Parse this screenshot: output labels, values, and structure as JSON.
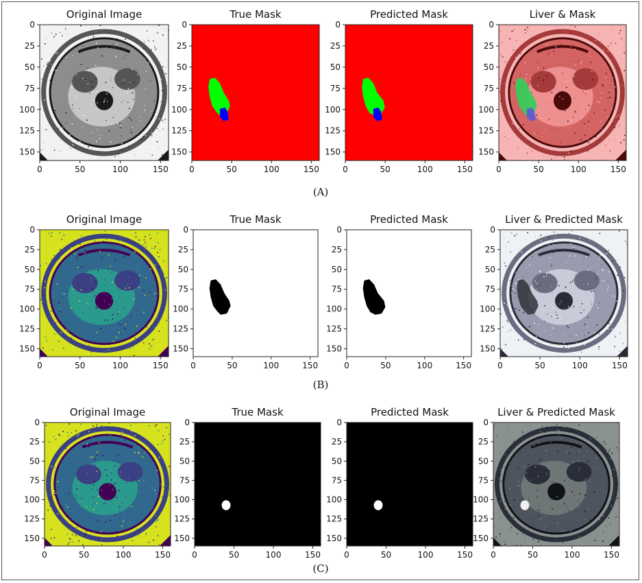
{
  "rows": [
    {
      "id": "A",
      "caption": "(A)",
      "panels": [
        {
          "title": "Original Image",
          "kind": "ct",
          "colormap": "gray"
        },
        {
          "title": "True Mask",
          "kind": "mask",
          "style": "rgb",
          "variant": "true"
        },
        {
          "title": "Predicted Mask",
          "kind": "mask",
          "style": "rgb",
          "variant": "pred"
        },
        {
          "title": "Liver & Mask",
          "kind": "overlay",
          "style": "red"
        }
      ]
    },
    {
      "id": "B",
      "caption": "(B)",
      "panels": [
        {
          "title": "Original Image",
          "kind": "ct",
          "colormap": "viridis"
        },
        {
          "title": "True Mask",
          "kind": "mask",
          "style": "white",
          "variant": "true"
        },
        {
          "title": "Predicted Mask",
          "kind": "mask",
          "style": "white",
          "variant": "pred"
        },
        {
          "title": "Liver & Predicted Mask",
          "kind": "overlay",
          "style": "light"
        }
      ]
    },
    {
      "id": "C",
      "caption": "(C)",
      "panels": [
        {
          "title": "Original Image",
          "kind": "ct",
          "colormap": "viridis"
        },
        {
          "title": "True Mask",
          "kind": "mask",
          "style": "black",
          "variant": "true"
        },
        {
          "title": "Predicted Mask",
          "kind": "mask",
          "style": "black",
          "variant": "pred"
        },
        {
          "title": "Liver & Predicted Mask",
          "kind": "overlay",
          "style": "dark"
        }
      ]
    }
  ],
  "axis": {
    "x_ticks": [
      0,
      50,
      100,
      150
    ],
    "y_ticks": [
      0,
      25,
      50,
      75,
      100,
      125,
      150
    ],
    "range": [
      0,
      160
    ]
  },
  "colors": {
    "mask_background_red": "#ff0000",
    "liver_green": "#00ff00",
    "tumor_blue": "#0000ff",
    "viridis_yellow": "#d6e21e",
    "viridis_teal": "#2a9a8c",
    "viridis_navy": "#3b3f83",
    "viridis_purple": "#440154"
  }
}
